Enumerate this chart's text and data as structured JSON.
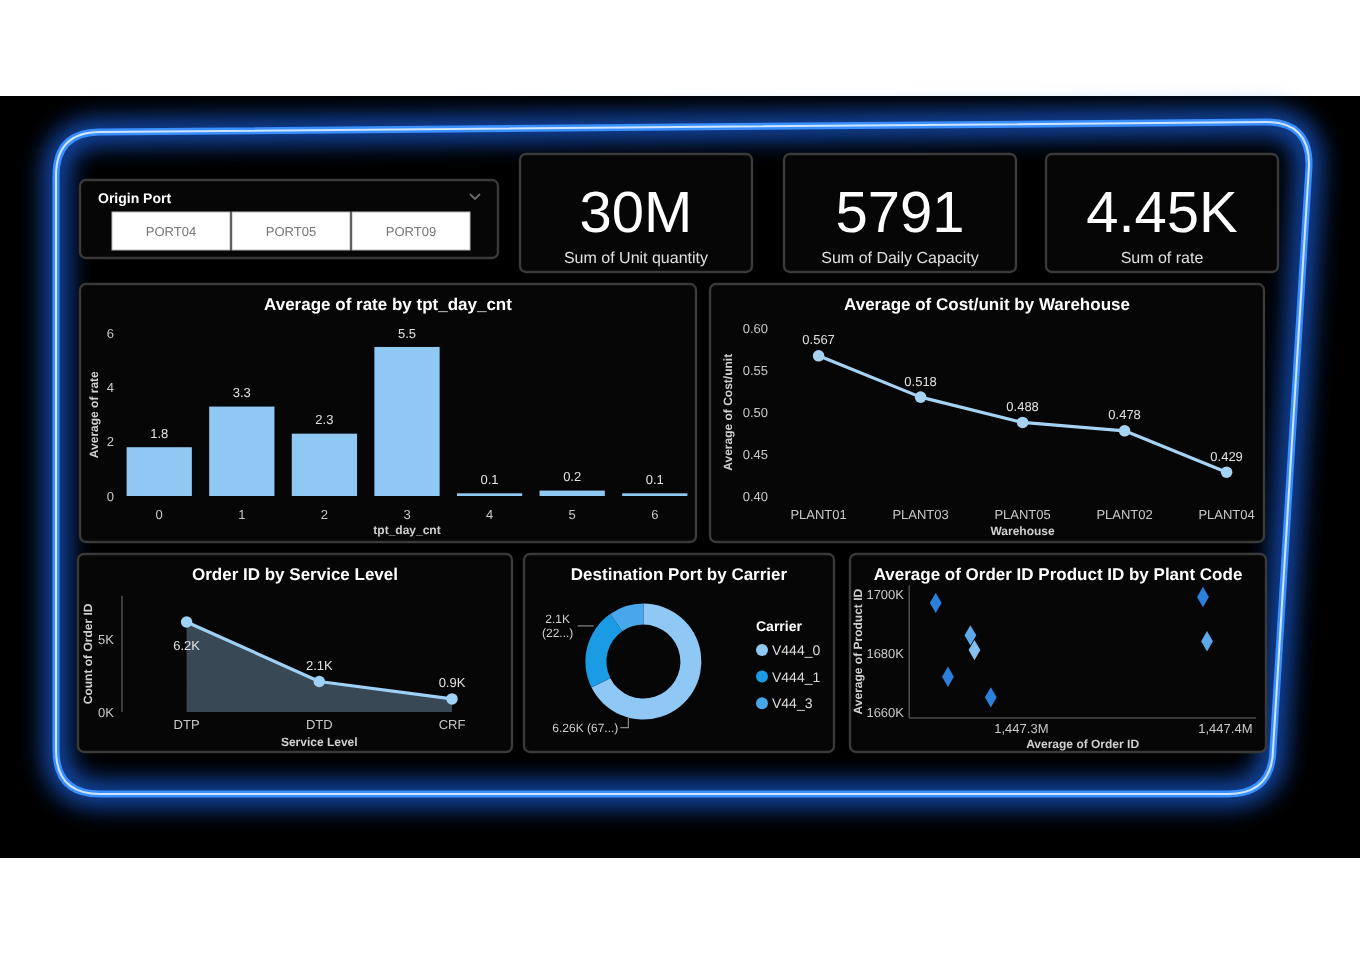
{
  "chart_data": [
    {
      "type": "other",
      "title": "Origin Port",
      "annotations": [
        "PORT04",
        "PORT05",
        "PORT09"
      ]
    },
    {
      "type": "other",
      "annotations": [
        "30M",
        "Sum of Unit quantity"
      ]
    },
    {
      "type": "other",
      "annotations": [
        "5791",
        "Sum of Daily Capacity"
      ]
    },
    {
      "type": "other",
      "annotations": [
        "4.45K",
        "Sum of rate"
      ]
    },
    {
      "type": "bar",
      "title": "Average of rate by tpt_day_cnt",
      "categories": [
        "0",
        "1",
        "2",
        "3",
        "4",
        "5",
        "6"
      ],
      "values": [
        1.8,
        3.3,
        2.3,
        5.5,
        0.1,
        0.2,
        0.1
      ],
      "color": "#90c8f4",
      "ylim": [
        0,
        6
      ],
      "yticks": [
        0,
        2,
        4,
        6
      ],
      "xlabel": "tpt_day_cnt",
      "ylabel": "Average of rate",
      "data_labels": true
    },
    {
      "type": "line",
      "title": "Average of Cost/unit by Warehouse",
      "categories": [
        "PLANT01",
        "PLANT03",
        "PLANT05",
        "PLANT02",
        "PLANT04"
      ],
      "values": [
        0.567,
        0.518,
        0.488,
        0.478,
        0.429
      ],
      "color": "#a6d2f4",
      "ylim": [
        0.4,
        0.6
      ],
      "yticks": [
        {
          "value": 0.4,
          "label": "0.40"
        },
        {
          "value": 0.45,
          "label": "0.45"
        },
        {
          "value": 0.5,
          "label": "0.50"
        },
        {
          "value": 0.55,
          "label": "0.55"
        },
        {
          "value": 0.6,
          "label": "0.60"
        }
      ],
      "xlabel": "Warehouse",
      "ylabel": "Average of Cost/unit",
      "data_labels": true,
      "marker": "circle"
    },
    {
      "type": "area",
      "title": "Order ID by Service Level",
      "categories": [
        "DTP",
        "DTD",
        "CRF"
      ],
      "values": [
        6200,
        2100,
        900
      ],
      "value_labels": [
        "6.2K",
        "2.1K",
        "0.9K"
      ],
      "color": "#9fd0f5",
      "ylim": [
        0,
        8000
      ],
      "yticks": [
        {
          "value": 0,
          "label": "0K"
        },
        {
          "value": 5000,
          "label": "5K"
        }
      ],
      "xlabel": "Service Level",
      "ylabel": "Count of Order ID",
      "marker": "circle"
    },
    {
      "type": "donut",
      "title": "Destination Port by Carrier",
      "categories": [
        "V444_0",
        "V444_1",
        "V44_3"
      ],
      "values": [
        6260,
        2100,
        900
      ],
      "colors": [
        "#8fc8f4",
        "#1b9be4",
        "#48a6ea"
      ],
      "value_labels": [
        "6.26K (67...)",
        "2.1K (22...)",
        null
      ],
      "legend_title": "Carrier",
      "legend": "right"
    },
    {
      "type": "scatter",
      "title": "Average of Order ID Product ID by Plant Code",
      "x": [
        1447258000,
        1447275000,
        1447277000,
        1447264000,
        1447285000,
        1447389000,
        1447391000
      ],
      "values": [
        1697000,
        1686000,
        1681000,
        1672000,
        1665000,
        1699000,
        1684000
      ],
      "colors": [
        "#2a80da",
        "#5ca8e8",
        "#86bff0",
        "#2a80da",
        "#2a80da",
        "#2a80da",
        "#5ca8e8"
      ],
      "xlim": [
        1447245000,
        1447415000
      ],
      "xticks": [
        {
          "value": 1447300000,
          "label": "1,447.3M"
        },
        {
          "value": 1447400000,
          "label": "1,447.4M"
        }
      ],
      "ylim": [
        1658000,
        1703000
      ],
      "yticks": [
        {
          "value": 1660000,
          "label": "1660K"
        },
        {
          "value": 1680000,
          "label": "1680K"
        },
        {
          "value": 1700000,
          "label": "1700K"
        }
      ],
      "xlabel": "Average of Order ID",
      "ylabel": "Average of Product ID",
      "marker": "diamond"
    }
  ]
}
